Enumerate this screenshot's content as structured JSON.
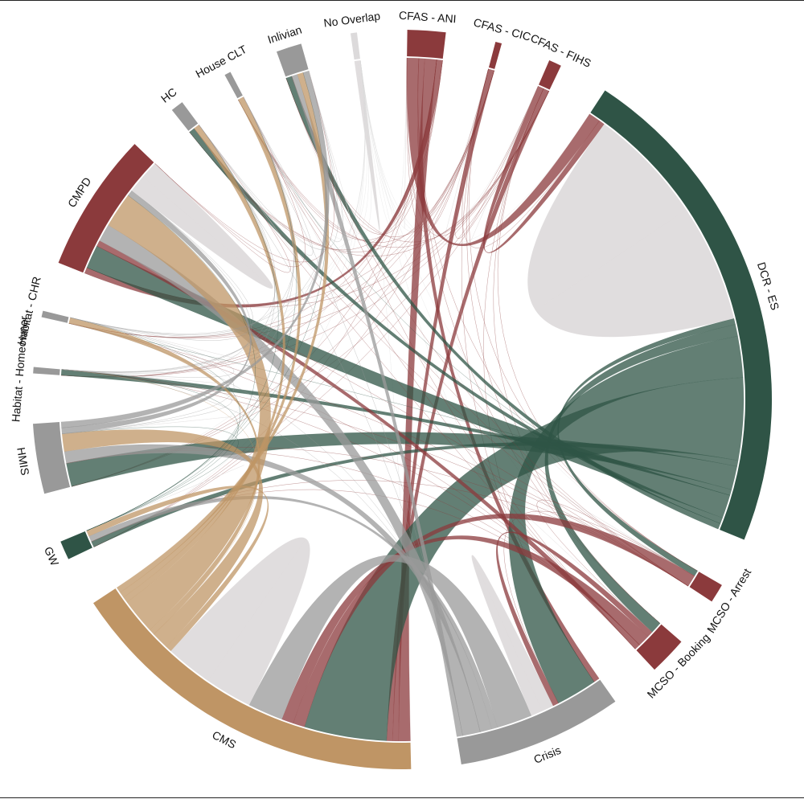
{
  "chart_data": {
    "type": "chord",
    "categories": [
      "No Overlap",
      "CFAS - ANI",
      "CFAS - CIC",
      "CFAS - FIHS",
      "DCR - ES",
      "MCSO - Arrest",
      "MCSO - Booking",
      "Crisis",
      "CMS",
      "GW",
      "HMIS",
      "Habitat - Homeowner",
      "Habitat - CHR",
      "CMPD",
      "HC",
      "House CLT",
      "Inlivian"
    ],
    "colors": [
      "#dcdadb",
      "#8b3a3c",
      "#8b3a3c",
      "#8b3a3c",
      "#2f5446",
      "#8b3a3c",
      "#8b3a3c",
      "#999999",
      "#bf9565",
      "#2f5446",
      "#999999",
      "#999999",
      "#999999",
      "#8b3a3c",
      "#999999",
      "#999999",
      "#999999"
    ],
    "self_color": "#dedbdc",
    "matrix": [
      [
        1,
        0,
        0,
        0,
        0,
        0,
        0,
        0,
        0,
        0,
        0,
        0,
        0,
        0,
        0,
        0,
        0
      ],
      [
        0,
        0,
        0,
        0,
        2,
        0,
        0,
        1,
        2,
        0,
        0,
        0,
        0,
        1,
        0,
        0,
        0
      ],
      [
        0,
        0,
        0,
        0,
        0,
        0,
        0,
        0,
        1,
        0,
        0,
        0,
        0,
        0,
        0,
        0,
        0
      ],
      [
        0,
        0,
        0,
        0,
        1,
        0,
        0,
        0,
        1,
        0,
        0,
        0,
        0,
        0,
        0,
        0,
        0
      ],
      [
        0,
        2,
        0,
        1,
        40,
        1,
        2,
        7,
        14,
        1,
        4,
        1,
        0,
        4,
        1,
        0,
        1
      ],
      [
        0,
        0,
        0,
        0,
        1,
        0,
        0,
        0,
        2,
        0,
        0,
        0,
        0,
        0,
        0,
        0,
        0
      ],
      [
        0,
        0,
        0,
        0,
        2,
        0,
        0,
        1,
        2,
        0,
        0,
        0,
        0,
        1,
        0,
        0,
        0
      ],
      [
        0,
        1,
        0,
        0,
        7,
        0,
        1,
        4,
        6,
        1,
        2,
        0,
        0,
        3,
        0,
        0,
        1
      ],
      [
        0,
        2,
        1,
        1,
        14,
        2,
        2,
        6,
        16,
        1,
        3,
        0,
        1,
        6,
        1,
        1,
        1
      ],
      [
        0,
        0,
        0,
        0,
        1,
        0,
        0,
        1,
        1,
        0,
        0,
        0,
        0,
        0,
        0,
        0,
        0
      ],
      [
        0,
        0,
        0,
        0,
        4,
        0,
        0,
        2,
        3,
        0,
        0,
        0,
        0,
        1,
        0,
        0,
        1
      ],
      [
        0,
        0,
        0,
        0,
        1,
        0,
        0,
        0,
        0,
        0,
        0,
        0,
        0,
        0,
        0,
        0,
        0
      ],
      [
        0,
        0,
        0,
        0,
        0,
        0,
        0,
        0,
        1,
        0,
        0,
        0,
        0,
        0,
        0,
        0,
        0
      ],
      [
        0,
        1,
        0,
        0,
        4,
        0,
        1,
        3,
        6,
        0,
        1,
        0,
        0,
        6,
        0,
        0,
        0
      ],
      [
        0,
        0,
        0,
        0,
        1,
        0,
        0,
        0,
        1,
        0,
        0,
        0,
        0,
        0,
        0,
        0,
        0
      ],
      [
        0,
        0,
        0,
        0,
        0,
        0,
        0,
        0,
        1,
        0,
        0,
        0,
        0,
        0,
        0,
        0,
        0
      ],
      [
        0,
        0,
        0,
        0,
        1,
        0,
        0,
        1,
        1,
        0,
        1,
        0,
        0,
        0,
        0,
        0,
        0
      ]
    ]
  }
}
